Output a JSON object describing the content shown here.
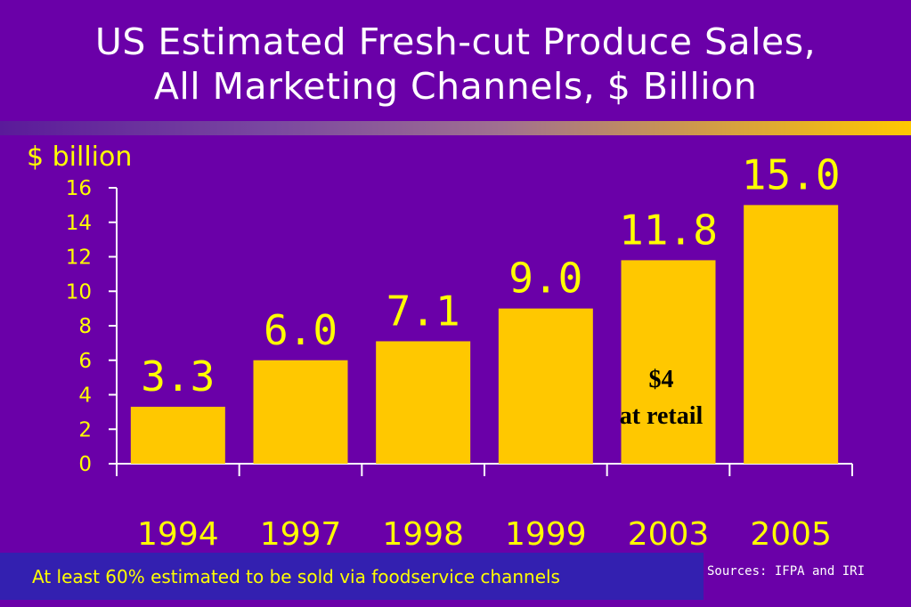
{
  "title": {
    "line1": "US Estimated Fresh-cut Produce Sales,",
    "line2": "All Marketing Channels, $ Billion"
  },
  "footer": {
    "note": "At least 60% estimated to be sold via foodservice channels",
    "sources": "Sources: IFPA and IRI"
  },
  "colors": {
    "background": "#6a00a8",
    "bar": "#ffc800",
    "bar_label": "#ffff00",
    "axis": "#ffffff",
    "footer_box": "#3320b0"
  },
  "chart_data": {
    "type": "bar",
    "ylabel": "$ billion",
    "categories": [
      "1994",
      "1997",
      "1998",
      "1999",
      "2003",
      "2005"
    ],
    "values": [
      3.3,
      6.0,
      7.1,
      9.0,
      11.8,
      15.0
    ],
    "data_labels": [
      "3.3",
      "6.0",
      "7.1",
      "9.0",
      "11.8",
      "15.0"
    ],
    "ylim": [
      0,
      16
    ],
    "yticks": [
      0,
      2,
      4,
      6,
      8,
      10,
      12,
      14,
      16
    ],
    "grid": false,
    "annotation": {
      "category": "2003",
      "line1": "$4",
      "line2": "at retail"
    }
  }
}
